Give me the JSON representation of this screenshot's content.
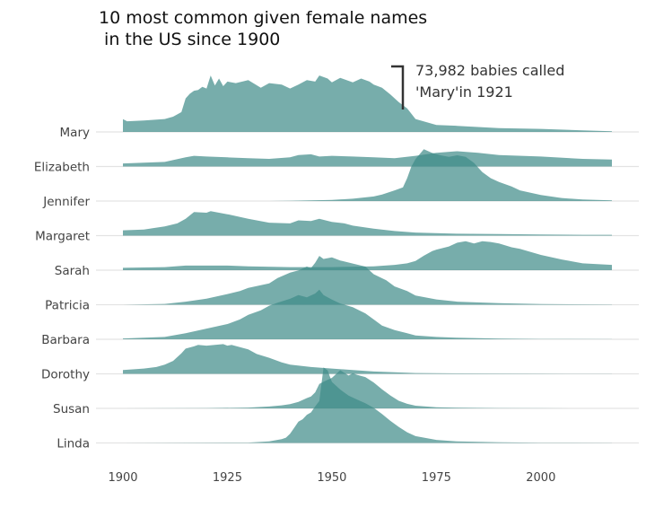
{
  "page": {
    "title": "10 most common given female names\n in the US since 1900",
    "annotation": "73,982 babies called\n'Mary'in 1921",
    "colors": {
      "fill": "#3d8a88",
      "baseline": "#e3e3e3",
      "text": "#444444"
    }
  },
  "chart_data": {
    "type": "area",
    "subtype": "ridgeline",
    "title": "10 most common given female names\n in the US since 1900",
    "xlabel": "",
    "ylabel": "",
    "xlim": [
      1900,
      2017
    ],
    "xticks": [
      1900,
      1925,
      1950,
      1975,
      2000
    ],
    "grid": false,
    "legend": "none",
    "annotation": {
      "name": "Mary",
      "year": 1921,
      "value": 73982,
      "text": "73,982 babies called 'Mary'in 1921"
    },
    "series": [
      {
        "name": "Mary",
        "x": [
          1900,
          1901,
          1905,
          1910,
          1912,
          1914,
          1915,
          1916,
          1917,
          1918,
          1919,
          1920,
          1921,
          1922,
          1923,
          1924,
          1925,
          1927,
          1930,
          1933,
          1935,
          1938,
          1940,
          1942,
          1944,
          1946,
          1947,
          1949,
          1950,
          1952,
          1955,
          1957,
          1959,
          1960,
          1962,
          1964,
          1966,
          1968,
          1970,
          1975,
          1980,
          1990,
          2000,
          2010,
          2017
        ],
        "y": [
          16700,
          14000,
          15000,
          17000,
          20000,
          26000,
          44000,
          50000,
          54000,
          55000,
          59000,
          57000,
          73982,
          61000,
          70000,
          60000,
          66000,
          64000,
          68000,
          58000,
          64000,
          62000,
          57000,
          62000,
          68000,
          66000,
          74000,
          70000,
          65000,
          71000,
          65000,
          70000,
          66000,
          62000,
          58000,
          49000,
          39000,
          31000,
          17000,
          9000,
          8000,
          5000,
          4000,
          2000,
          1000
        ]
      },
      {
        "name": "Elizabeth",
        "x": [
          1900,
          1910,
          1915,
          1917,
          1920,
          1925,
          1930,
          1935,
          1940,
          1942,
          1945,
          1947,
          1950,
          1955,
          1960,
          1965,
          1970,
          1975,
          1980,
          1985,
          1990,
          2000,
          2010,
          2017
        ],
        "y": [
          4000,
          6000,
          12000,
          14000,
          13000,
          12000,
          11000,
          10000,
          12000,
          15000,
          16000,
          13000,
          14000,
          13000,
          12000,
          11000,
          14000,
          18000,
          20000,
          18000,
          15000,
          13000,
          10000,
          9000
        ]
      },
      {
        "name": "Jennifer",
        "x": [
          1900,
          1935,
          1940,
          1945,
          1950,
          1955,
          1960,
          1962,
          1965,
          1967,
          1968,
          1969,
          1970,
          1972,
          1974,
          1976,
          1978,
          1980,
          1982,
          1984,
          1985,
          1986,
          1988,
          1990,
          1993,
          1995,
          2000,
          2005,
          2010,
          2017
        ],
        "y": [
          0,
          0,
          300,
          800,
          1500,
          3000,
          6000,
          8500,
          14000,
          18000,
          30000,
          45000,
          55000,
          68000,
          63000,
          60000,
          58000,
          60000,
          58000,
          50000,
          44000,
          38000,
          30000,
          25000,
          19000,
          14000,
          8000,
          4000,
          2000,
          1000
        ]
      },
      {
        "name": "Margaret",
        "x": [
          1900,
          1905,
          1910,
          1913,
          1915,
          1917,
          1920,
          1921,
          1925,
          1930,
          1935,
          1940,
          1942,
          1945,
          1947,
          1950,
          1953,
          1955,
          1960,
          1965,
          1970,
          1980,
          1990,
          2000,
          2010,
          2017
        ],
        "y": [
          7000,
          8000,
          12000,
          16000,
          22000,
          31000,
          30000,
          32000,
          28000,
          22000,
          17000,
          16000,
          20000,
          19000,
          22000,
          18000,
          16000,
          13000,
          9000,
          6000,
          4000,
          2500,
          2000,
          1500,
          1000,
          1000
        ]
      },
      {
        "name": "Sarah",
        "x": [
          1900,
          1910,
          1915,
          1920,
          1925,
          1930,
          1940,
          1950,
          1960,
          1965,
          1968,
          1970,
          1972,
          1974,
          1975,
          1978,
          1980,
          1982,
          1984,
          1986,
          1988,
          1990,
          1993,
          1995,
          2000,
          2005,
          2010,
          2017
        ],
        "y": [
          3000,
          4000,
          6000,
          6000,
          6000,
          5000,
          4000,
          4000,
          5000,
          7000,
          9000,
          12000,
          19000,
          25000,
          27000,
          31000,
          36000,
          38000,
          35000,
          38000,
          37000,
          35000,
          30000,
          28000,
          20000,
          14000,
          9000,
          7000
        ]
      },
      {
        "name": "Patricia",
        "x": [
          1900,
          1910,
          1915,
          1920,
          1925,
          1928,
          1930,
          1935,
          1937,
          1940,
          1942,
          1944,
          1945,
          1946,
          1947,
          1948,
          1950,
          1952,
          1955,
          1958,
          1960,
          1963,
          1965,
          1968,
          1970,
          1975,
          1980,
          1990,
          2000,
          2017
        ],
        "y": [
          0,
          1000,
          4000,
          8000,
          14000,
          18000,
          22000,
          28000,
          35000,
          42000,
          45000,
          50000,
          48000,
          55000,
          64000,
          60000,
          62000,
          58000,
          54000,
          50000,
          40000,
          32000,
          24000,
          18000,
          12000,
          7000,
          4000,
          2000,
          800,
          300
        ]
      },
      {
        "name": "Barbara",
        "x": [
          1900,
          1910,
          1915,
          1920,
          1925,
          1928,
          1930,
          1933,
          1935,
          1937,
          1940,
          1942,
          1944,
          1946,
          1947,
          1948,
          1950,
          1952,
          1955,
          1958,
          1960,
          1962,
          1965,
          1968,
          1970,
          1975,
          1980,
          1990,
          2000,
          2017
        ],
        "y": [
          1000,
          3000,
          8000,
          14000,
          20000,
          26000,
          32000,
          38000,
          44000,
          48000,
          53000,
          58000,
          55000,
          60000,
          65000,
          58000,
          52000,
          47000,
          42000,
          34000,
          26000,
          18000,
          12000,
          8000,
          5000,
          3000,
          2000,
          800,
          300,
          100
        ]
      },
      {
        "name": "Dorothy",
        "x": [
          1900,
          1905,
          1908,
          1910,
          1912,
          1914,
          1915,
          1917,
          1918,
          1920,
          1922,
          1924,
          1925,
          1926,
          1928,
          1930,
          1932,
          1935,
          1938,
          1940,
          1945,
          1950,
          1955,
          1960,
          1965,
          1970,
          1980,
          2000,
          2017
        ],
        "y": [
          5000,
          7000,
          9000,
          12000,
          17000,
          27000,
          33000,
          36000,
          38000,
          37000,
          38000,
          39000,
          37000,
          38000,
          35000,
          32000,
          26000,
          21000,
          15000,
          12000,
          9000,
          7000,
          5000,
          3000,
          2000,
          1000,
          600,
          200,
          100
        ]
      },
      {
        "name": "Susan",
        "x": [
          1900,
          1920,
          1930,
          1935,
          1938,
          1940,
          1942,
          1944,
          1945,
          1946,
          1947,
          1948,
          1950,
          1952,
          1954,
          1955,
          1956,
          1958,
          1960,
          1962,
          1964,
          1966,
          1968,
          1970,
          1975,
          1980,
          1990,
          2000,
          2017
        ],
        "y": [
          0,
          200,
          1000,
          2500,
          4000,
          5500,
          8500,
          13500,
          15500,
          21000,
          32000,
          35000,
          40000,
          50000,
          43000,
          46000,
          44000,
          41000,
          34000,
          25000,
          17000,
          10000,
          6000,
          3500,
          1500,
          800,
          300,
          100,
          0
        ]
      },
      {
        "name": "Linda",
        "x": [
          1900,
          1930,
          1935,
          1938,
          1939,
          1940,
          1941,
          1942,
          1943,
          1944,
          1945,
          1946,
          1947,
          1948,
          1949,
          1950,
          1952,
          1954,
          1956,
          1958,
          1960,
          1962,
          1964,
          1966,
          1968,
          1970,
          1975,
          1980,
          1990,
          2000,
          2017
        ],
        "y": [
          0,
          500,
          2000,
          5000,
          7000,
          12000,
          20000,
          28000,
          31000,
          37000,
          40000,
          48000,
          55000,
          99000,
          95000,
          80000,
          70000,
          62000,
          57000,
          52000,
          46000,
          38000,
          29000,
          21000,
          14000,
          9000,
          4000,
          2000,
          800,
          300,
          100
        ]
      }
    ]
  }
}
